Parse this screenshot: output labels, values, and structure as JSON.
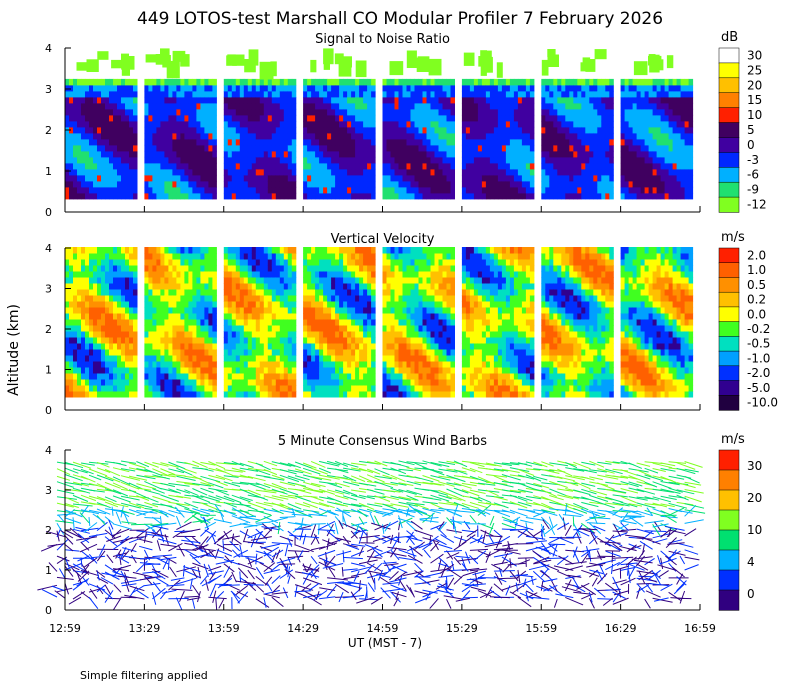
{
  "title": "449 LOTOS-test Marshall CO Modular Profiler  7 February 2026",
  "ylabel": "Altitude (km)",
  "xlabel": "UT  (MST - 7)",
  "footer": "Simple filtering applied",
  "x_ticks": [
    "12:59",
    "13:29",
    "13:59",
    "14:29",
    "14:59",
    "15:29",
    "15:59",
    "16:29",
    "16:59"
  ],
  "y_ticks": [
    "0",
    "1",
    "2",
    "3",
    "4"
  ],
  "chart_data": [
    {
      "type": "heatmap",
      "title": "Signal to Noise Ratio",
      "units": "dB",
      "colorbar_labels": [
        "30",
        "25",
        "20",
        "15",
        "10",
        "5",
        "0",
        "-3",
        "-6",
        "-9",
        "-12"
      ],
      "colors": [
        "#ffffff",
        "#ffff00",
        "#ffc000",
        "#ff8000",
        "#ff2000",
        "#400060",
        "#4000a0",
        "#0028ff",
        "#00b0ff",
        "#20e070",
        "#80ff20"
      ],
      "x_range": [
        "12:59",
        "16:59"
      ],
      "ylim": [
        0,
        4
      ],
      "data_blocks": [
        {
          "start": "12:59",
          "end": "13:25"
        },
        {
          "start": "13:29",
          "end": "13:55"
        },
        {
          "start": "13:59",
          "end": "14:25"
        },
        {
          "start": "14:29",
          "end": "14:55"
        },
        {
          "start": "14:59",
          "end": "15:25"
        },
        {
          "start": "15:29",
          "end": "15:55"
        },
        {
          "start": "15:59",
          "end": "16:25"
        },
        {
          "start": "16:29",
          "end": "16:55"
        }
      ]
    },
    {
      "type": "heatmap",
      "title": "Vertical Velocity",
      "units": "m/s",
      "colorbar_labels": [
        "2.0",
        "1.0",
        "0.5",
        "0.2",
        "0.0",
        "-0.2",
        "-0.5",
        "-1.0",
        "-2.0",
        "-5.0",
        "-10.0"
      ],
      "colors": [
        "#ff2000",
        "#ff6000",
        "#ff9000",
        "#ffc000",
        "#ffff00",
        "#40ff20",
        "#00e0c0",
        "#00a0ff",
        "#0030ff",
        "#300090",
        "#200040"
      ],
      "x_range": [
        "12:59",
        "16:59"
      ],
      "ylim": [
        0,
        4
      ]
    },
    {
      "type": "scatter",
      "title": "5 Minute Consensus Wind Barbs",
      "units": "m/s",
      "colorbar_labels": [
        "30",
        "20",
        "10",
        "4",
        "0"
      ],
      "colors": [
        "#ff2000",
        "#ff8000",
        "#ffc000",
        "#80ff20",
        "#00e070",
        "#00b0ff",
        "#0030ff",
        "#300080"
      ],
      "x_range": [
        "12:59",
        "16:59"
      ],
      "ylim": [
        0,
        4
      ]
    }
  ]
}
